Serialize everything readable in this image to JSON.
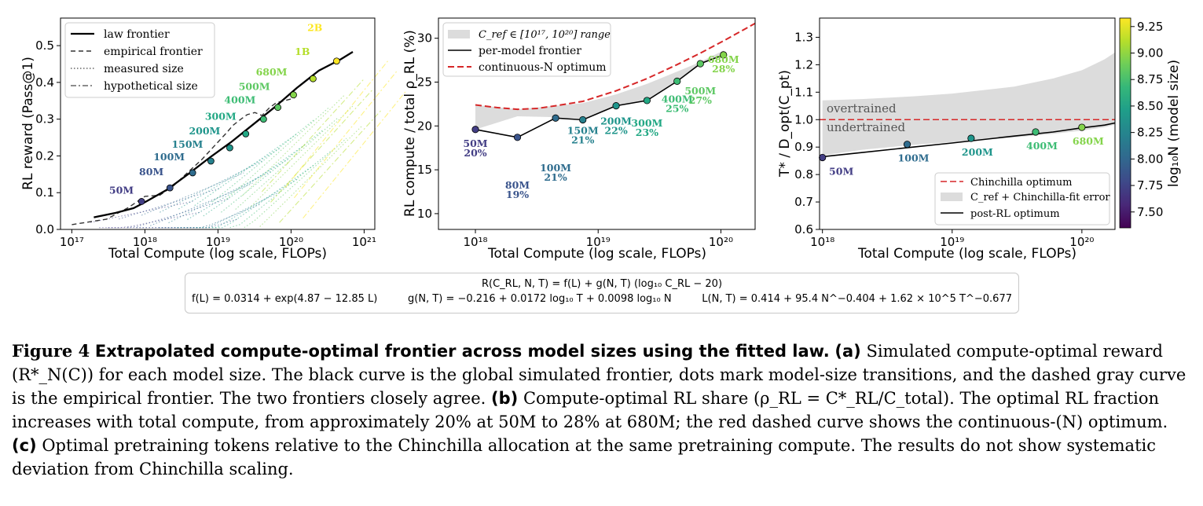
{
  "chart_data": [
    {
      "type": "line",
      "panel": "(a)",
      "xlabel": "Total Compute (log scale, FLOPs)",
      "ylabel": "RL reward  (Pass@1)",
      "x_scale": "log",
      "xlim": [
        7e+16,
        1.4e+21
      ],
      "ylim": [
        0,
        0.575
      ],
      "xticks": [
        1e+17,
        1e+18,
        1e+19,
        1e+20,
        1e+21
      ],
      "xtick_labels": [
        "10¹⁷",
        "10¹⁸",
        "10¹⁹",
        "10²⁰",
        "10²¹"
      ],
      "yticks": [
        0.0,
        0.1,
        0.2,
        0.3,
        0.4,
        0.5
      ],
      "ytick_labels": [
        "0.0",
        "0.1",
        "0.2",
        "0.3",
        "0.4",
        "0.5"
      ],
      "legend_position": "top-left",
      "legend": [
        "law frontier",
        "empirical frontier",
        "measured size",
        "hypothetical size"
      ],
      "law_frontier": {
        "name": "law frontier",
        "x": [
          2e+17,
          4e+17,
          7e+17,
          1e+18,
          2e+18,
          4e+18,
          8e+18,
          1.5e+19,
          3e+19,
          6e+19,
          1.2e+20,
          2.4e+20,
          4.8e+20,
          7e+20
        ],
        "y": [
          0.033,
          0.045,
          0.058,
          0.074,
          0.108,
          0.152,
          0.198,
          0.237,
          0.285,
          0.333,
          0.385,
          0.432,
          0.463,
          0.483
        ]
      },
      "empirical_frontier": {
        "name": "empirical frontier",
        "x": [
          1e+17,
          3e+17,
          6e+17,
          1e+18,
          1.6e+18,
          2.5e+18,
          4e+18,
          6e+18,
          9e+18,
          1.3e+19,
          1.6e+19,
          2e+19,
          2.5e+19,
          3.2e+19,
          4e+19,
          5e+19,
          6.3e+19,
          8e+19,
          1.1e+20
        ],
        "y": [
          0.013,
          0.028,
          0.06,
          0.09,
          0.093,
          0.12,
          0.158,
          0.19,
          0.228,
          0.262,
          0.283,
          0.298,
          0.312,
          0.318,
          0.31,
          0.33,
          0.345,
          0.35,
          0.357
        ]
      },
      "transition_points": {
        "labels": [
          "50M",
          "80M",
          "100M",
          "150M",
          "200M",
          "300M",
          "400M",
          "500M",
          "680M",
          "1B",
          "2B"
        ],
        "x": [
          9e+17,
          2.2e+18,
          4.5e+18,
          8e+18,
          1.45e+19,
          2.4e+19,
          4.2e+19,
          6.6e+19,
          1.08e+20,
          2e+20,
          4.2e+20
        ],
        "y": [
          0.076,
          0.113,
          0.154,
          0.186,
          0.222,
          0.26,
          0.3,
          0.332,
          0.366,
          0.41,
          0.458
        ],
        "colors": [
          "#433e85",
          "#3a548c",
          "#2f6c8e",
          "#26818e",
          "#1f958b",
          "#22a884",
          "#3dbc74",
          "#5dc863",
          "#84d44b",
          "#b5de2b",
          "#fde725"
        ]
      },
      "size_labels": {
        "labels": [
          "50M",
          "80M",
          "100M",
          "150M",
          "200M",
          "300M",
          "400M",
          "500M",
          "680M",
          "1B",
          "2B"
        ],
        "colors": [
          "#433e85",
          "#3a548c",
          "#2f6c8e",
          "#26818e",
          "#1f958b",
          "#22a884",
          "#3dbc74",
          "#5dc863",
          "#84d44b",
          "#b5de2b",
          "#fde725"
        ]
      }
    },
    {
      "type": "line",
      "panel": "(b)",
      "xlabel": "Total Compute (log scale, FLOPs)",
      "ylabel": "RL compute / total  ρ_RL  (%)",
      "x_scale": "log",
      "xlim": [
        5e+17,
        1.9e+20
      ],
      "ylim": [
        8.2,
        32.3
      ],
      "xticks": [
        1e+18,
        1e+19,
        1e+20
      ],
      "xtick_labels": [
        "10¹⁸",
        "10¹⁹",
        "10²⁰"
      ],
      "yticks": [
        10,
        15,
        20,
        25,
        30
      ],
      "ytick_labels": [
        "10",
        "15",
        "20",
        "25",
        "30"
      ],
      "legend_position": "top-left",
      "legend": [
        "C_ref ∈ [10¹⁷, 10²⁰] range",
        "per-model frontier",
        "continuous-N optimum"
      ],
      "range_band": {
        "name": "C_ref ∈ [10¹⁷, 10²⁰] range",
        "x": [
          1e+18,
          2.2e+18,
          4.5e+18,
          7.5e+18,
          1.4e+19,
          2.5e+19,
          4.4e+19,
          6.8e+19,
          1.05e+20
        ],
        "upper": [
          22.4,
          21.9,
          22.3,
          22.6,
          23.6,
          24.8,
          26.2,
          27.3,
          28.6
        ],
        "lower": [
          19.6,
          21.1,
          21.0,
          20.8,
          22.3,
          23.0,
          25.2,
          27.1,
          28.2
        ]
      },
      "per_model_frontier": {
        "name": "per-model frontier",
        "x": [
          1e+18,
          2.2e+18,
          4.5e+18,
          7.5e+18,
          1.4e+19,
          2.5e+19,
          4.4e+19,
          6.8e+19,
          1.05e+20
        ],
        "y": [
          19.6,
          18.7,
          20.9,
          20.7,
          22.3,
          22.9,
          25.1,
          27.1,
          28.1
        ],
        "labels": [
          "50M",
          "80M",
          "100M",
          "150M",
          "200M",
          "300M",
          "400M",
          "500M",
          "680M"
        ],
        "percent_labels": [
          "20%",
          "19%",
          "21%",
          "21%",
          "22%",
          "23%",
          "25%",
          "27%",
          "28%"
        ],
        "colors": [
          "#433e85",
          "#3a548c",
          "#2f6c8e",
          "#26818e",
          "#1f958b",
          "#22a884",
          "#3dbc74",
          "#5dc863",
          "#84d44b"
        ]
      },
      "continuous_optimum": {
        "name": "continuous-N optimum",
        "x": [
          1e+18,
          1.5e+18,
          2.2e+18,
          3.2e+18,
          4.5e+18,
          7.5e+18,
          1.4e+19,
          2.5e+19,
          4.4e+19,
          6.8e+19,
          1.05e+20,
          1.5e+20,
          1.9e+20
        ],
        "y": [
          22.4,
          22.1,
          21.9,
          22.0,
          22.3,
          22.8,
          24.0,
          25.4,
          27.0,
          28.3,
          29.7,
          30.9,
          31.7
        ],
        "color": "#d62728"
      }
    },
    {
      "type": "line",
      "panel": "(c)",
      "xlabel": "Total Compute (log scale, FLOPs)",
      "ylabel": "T* / D_opt(C_pt)",
      "x_scale": "log",
      "xlim": [
        9.5e+17,
        1.8e+20
      ],
      "ylim": [
        0.6,
        1.37
      ],
      "xticks": [
        1e+18,
        1e+19,
        1e+20
      ],
      "xtick_labels": [
        "10¹⁸",
        "10¹⁹",
        "10²⁰"
      ],
      "yticks": [
        0.6,
        0.7,
        0.8,
        0.9,
        1.0,
        1.1,
        1.2,
        1.3
      ],
      "ytick_labels": [
        "0.6",
        "0.7",
        "0.8",
        "0.9",
        "1.0",
        "1.1",
        "1.2",
        "1.3"
      ],
      "legend_position": "bottom-right",
      "legend": [
        "Chinchilla optimum",
        "C_ref + Chinchilla-fit error",
        "post-RL optimum"
      ],
      "chinchilla_optimum": {
        "name": "Chinchilla optimum",
        "y": 1.0,
        "color": "#d62728"
      },
      "error_band": {
        "name": "C_ref + Chinchilla-fit error",
        "x": [
          1e+18,
          2e+18,
          5e+18,
          1e+19,
          3e+19,
          6e+19,
          1e+20,
          1.5e+20,
          1.8e+20
        ],
        "upper": [
          1.07,
          1.075,
          1.085,
          1.095,
          1.12,
          1.15,
          1.18,
          1.22,
          1.245
        ],
        "lower": [
          0.87,
          0.89,
          0.908,
          0.918,
          0.935,
          0.948,
          0.96,
          0.972,
          0.982
        ]
      },
      "post_rl_optimum": {
        "name": "post-RL optimum",
        "x": [
          1e+18,
          2e+18,
          5e+18,
          1e+19,
          3e+19,
          6e+19,
          1e+20,
          1.5e+20,
          1.8e+20
        ],
        "y": [
          0.865,
          0.88,
          0.9,
          0.915,
          0.94,
          0.955,
          0.97,
          0.98,
          0.988
        ]
      },
      "transition_points": {
        "labels": [
          "50M",
          "100M",
          "200M",
          "400M",
          "680M"
        ],
        "x": [
          1e+18,
          4.5e+18,
          1.4e+19,
          4.4e+19,
          1e+20
        ],
        "y": [
          0.862,
          0.91,
          0.932,
          0.955,
          0.972
        ],
        "colors": [
          "#433e85",
          "#2f6c8e",
          "#1f958b",
          "#3dbc74",
          "#84d44b"
        ]
      },
      "annotations": [
        "overtrained",
        "undertrained"
      ],
      "colorbar": {
        "label": "log₁₀N  (model size)",
        "range": [
          7.35,
          9.33
        ],
        "ticks": [
          7.5,
          7.75,
          8.0,
          8.25,
          8.5,
          8.75,
          9.0,
          9.25
        ],
        "tick_labels": [
          "7.50",
          "7.75",
          "8.00",
          "8.25",
          "8.50",
          "8.75",
          "9.00",
          "9.25"
        ],
        "colormap": [
          "#440154",
          "#482878",
          "#3e4989",
          "#31688e",
          "#26828e",
          "#1f9e89",
          "#35b779",
          "#6ece58",
          "#b5de2b",
          "#fde725"
        ]
      }
    }
  ],
  "formula": {
    "line1": "R(C_RL, N, T)  =  f(L) + g(N, T) (log₁₀ C_RL − 20)",
    "f": "f(L) = 0.0314 + exp(4.87 − 12.85 L)",
    "g": "g(N, T) = −0.216 + 0.0172 log₁₀ T + 0.0098 log₁₀ N",
    "L": "L(N, T) = 0.414 + 95.4 N^−0.404 + 1.62 × 10^5 T^−0.677"
  },
  "caption": {
    "figure": "Figure 4",
    "title": "Extrapolated compute-optimal frontier across model sizes using the fitted law.",
    "a_tag": "(a)",
    "a_text": "Simulated compute-optimal reward (R*_N(C)) for each model size. The black curve is the global simulated frontier, dots mark model-size transitions, and the dashed gray curve is the empirical frontier. The two frontiers closely agree.",
    "b_tag": "(b)",
    "b_text": "Compute-optimal RL share (ρ_RL = C*_RL/C_total). The optimal RL fraction increases with total compute, from approximately 20% at 50M to 28% at 680M; the red dashed curve shows the continuous-(N) optimum.",
    "c_tag": "(c)",
    "c_text": "Optimal pretraining tokens relative to the Chinchilla allocation at the same pretraining compute. The results do not show systematic deviation from Chinchilla scaling."
  }
}
